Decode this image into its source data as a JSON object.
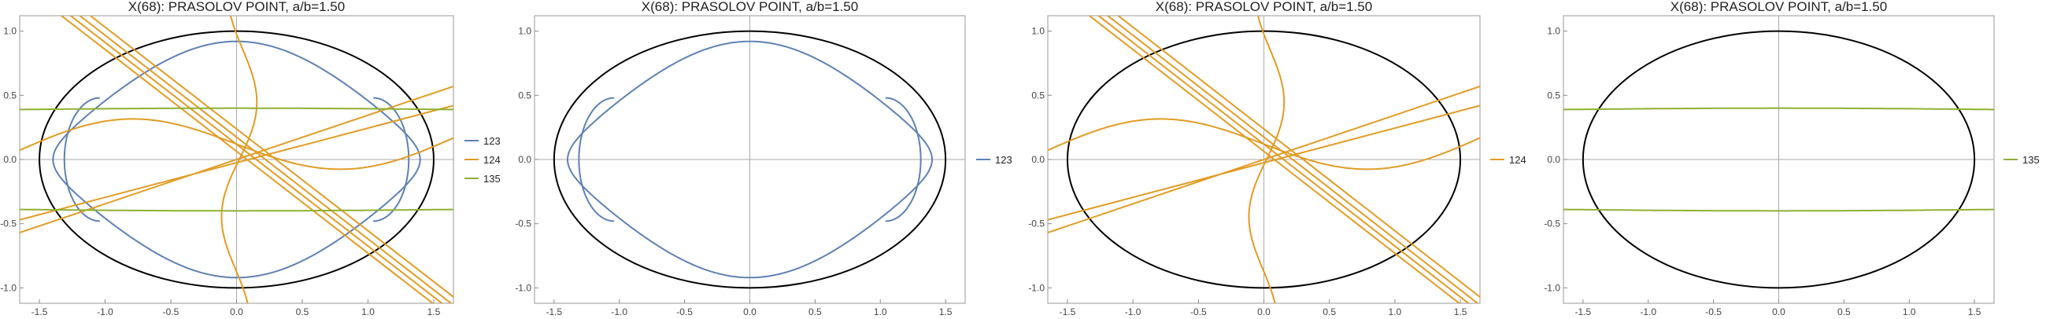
{
  "chart_data": [
    {
      "type": "line",
      "title": "X(68): PRASOLOV POINT, a/b=1.50",
      "xlim": [
        -1.65,
        1.65
      ],
      "ylim": [
        -1.12,
        1.12
      ],
      "xticks": [
        -1.5,
        -1.0,
        -0.5,
        0.0,
        0.5,
        1.0,
        1.5
      ],
      "xtick_labels": [
        "-1.5",
        "-1.0",
        "-0.5",
        "0.0",
        "0.5",
        "1.0",
        "1.5"
      ],
      "yticks": [
        -1.0,
        -0.5,
        0.0,
        0.5,
        1.0
      ],
      "ytick_labels": [
        "-1.0",
        "-0.5",
        "0.0",
        "0.5",
        "1.0"
      ],
      "ellipse": {
        "a": 1.5,
        "b": 1.0,
        "color": "#000000"
      },
      "legend": {
        "placement": "right",
        "entries": [
          "123",
          "124",
          "135"
        ]
      },
      "series": [
        {
          "name": "123",
          "color": "#5e81b5"
        },
        {
          "name": "124",
          "color": "#e19c24"
        },
        {
          "name": "135",
          "color": "#8fb032"
        }
      ]
    },
    {
      "type": "line",
      "title": "X(68): PRASOLOV POINT, a/b=1.50",
      "xlim": [
        -1.65,
        1.65
      ],
      "ylim": [
        -1.12,
        1.12
      ],
      "xticks": [
        -1.5,
        -1.0,
        -0.5,
        0.0,
        0.5,
        1.0,
        1.5
      ],
      "xtick_labels": [
        "-1.5",
        "-1.0",
        "-0.5",
        "0.0",
        "0.5",
        "1.0",
        "1.5"
      ],
      "yticks": [
        -1.0,
        -0.5,
        0.0,
        0.5,
        1.0
      ],
      "ytick_labels": [
        "-1.0",
        "-0.5",
        "0.0",
        "0.5",
        "1.0"
      ],
      "ellipse": {
        "a": 1.5,
        "b": 1.0,
        "color": "#000000"
      },
      "legend": {
        "placement": "right",
        "entries": [
          "123"
        ]
      },
      "series": [
        {
          "name": "123",
          "color": "#5e81b5"
        }
      ]
    },
    {
      "type": "line",
      "title": "X(68): PRASOLOV POINT, a/b=1.50",
      "xlim": [
        -1.65,
        1.65
      ],
      "ylim": [
        -1.12,
        1.12
      ],
      "xticks": [
        -1.5,
        -1.0,
        -0.5,
        0.0,
        0.5,
        1.0,
        1.5
      ],
      "xtick_labels": [
        "-1.5",
        "-1.0",
        "-0.5",
        "0.0",
        "0.5",
        "1.0",
        "1.5"
      ],
      "yticks": [
        -1.0,
        -0.5,
        0.0,
        0.5,
        1.0
      ],
      "ytick_labels": [
        "-1.0",
        "-0.5",
        "0.0",
        "0.5",
        "1.0"
      ],
      "ellipse": {
        "a": 1.5,
        "b": 1.0,
        "color": "#000000"
      },
      "legend": {
        "placement": "right",
        "entries": [
          "124"
        ]
      },
      "series": [
        {
          "name": "124",
          "color": "#e19c24"
        }
      ]
    },
    {
      "type": "line",
      "title": "X(68): PRASOLOV POINT, a/b=1.50",
      "xlim": [
        -1.65,
        1.65
      ],
      "ylim": [
        -1.12,
        1.12
      ],
      "xticks": [
        -1.5,
        -1.0,
        -0.5,
        0.0,
        0.5,
        1.0,
        1.5
      ],
      "xtick_labels": [
        "-1.5",
        "-1.0",
        "-0.5",
        "0.0",
        "0.5",
        "1.0",
        "1.5"
      ],
      "yticks": [
        -1.0,
        -0.5,
        0.0,
        0.5,
        1.0
      ],
      "ytick_labels": [
        "-1.0",
        "-0.5",
        "0.0",
        "0.5",
        "1.0"
      ],
      "ellipse": {
        "a": 1.5,
        "b": 1.0,
        "color": "#000000"
      },
      "legend": {
        "placement": "right",
        "entries": [
          "135"
        ]
      },
      "series": [
        {
          "name": "135",
          "color": "#8fb032"
        }
      ]
    }
  ]
}
